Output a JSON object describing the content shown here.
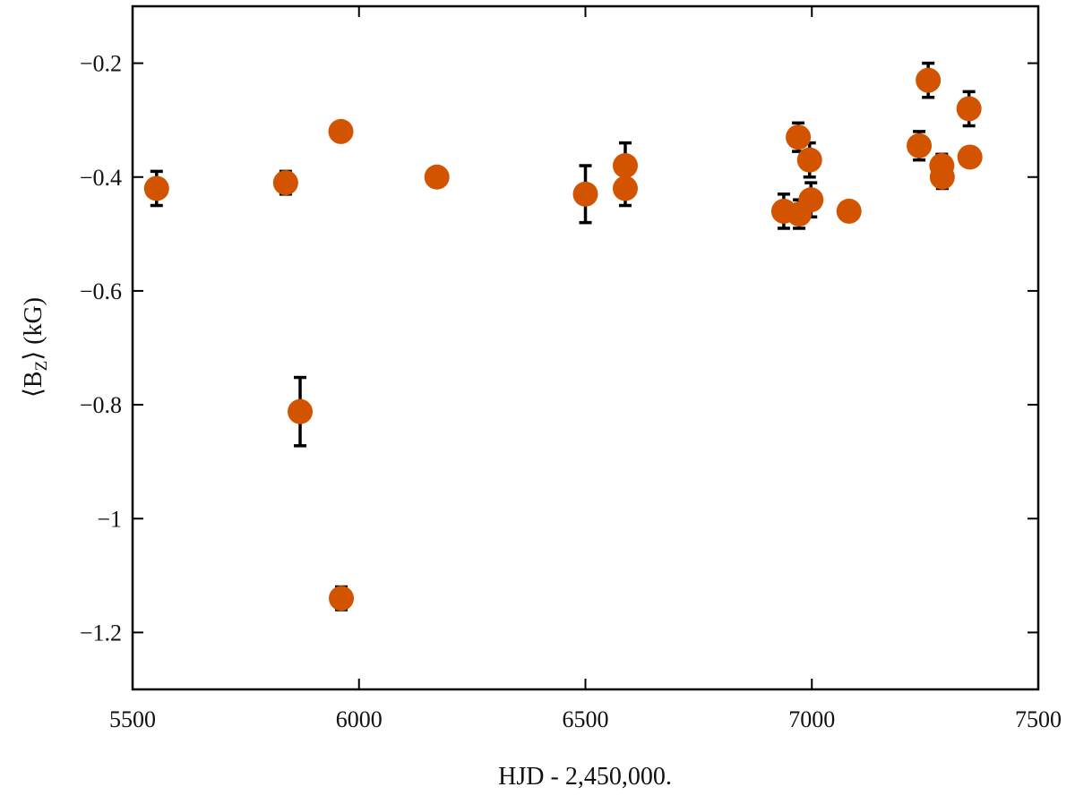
{
  "chart_data": {
    "type": "scatter",
    "xlabel": "HJD - 2,450,000.",
    "ylabel_main": "⟨B",
    "ylabel_sub": "Z",
    "ylabel_rest": "⟩ (kG)",
    "xlim": [
      5500,
      7500
    ],
    "ylim": [
      -1.3,
      -0.1
    ],
    "x_ticks": [
      5500,
      6000,
      6500,
      7000,
      7500
    ],
    "x_tick_labels": [
      "5500",
      "6000",
      "6500",
      "7000",
      "7500"
    ],
    "y_ticks": [
      -0.2,
      -0.4,
      -0.6,
      -0.8,
      -1.0,
      -1.2
    ],
    "y_tick_labels": [
      "−0.2",
      "−0.4",
      "−0.6",
      "−0.8",
      "−1",
      "−1.2"
    ],
    "grid": false,
    "marker_color": "#d35400",
    "errorbar_color": "#000000",
    "points": [
      {
        "x": 5553,
        "y": -0.42,
        "err": 0.03
      },
      {
        "x": 5838,
        "y": -0.41,
        "err": 0.02
      },
      {
        "x": 5870,
        "y": -0.812,
        "err": 0.06
      },
      {
        "x": 5960,
        "y": -0.32,
        "err": 0.0
      },
      {
        "x": 5961,
        "y": -1.14,
        "err": 0.02
      },
      {
        "x": 6172,
        "y": -0.4,
        "err": 0.0
      },
      {
        "x": 6500,
        "y": -0.43,
        "err": 0.05
      },
      {
        "x": 6588,
        "y": -0.38,
        "err": 0.04
      },
      {
        "x": 6588,
        "y": -0.42,
        "err": 0.03
      },
      {
        "x": 6938,
        "y": -0.46,
        "err": 0.03
      },
      {
        "x": 6970,
        "y": -0.33,
        "err": 0.025
      },
      {
        "x": 6972,
        "y": -0.465,
        "err": 0.025
      },
      {
        "x": 6995,
        "y": -0.37,
        "err": 0.03
      },
      {
        "x": 6998,
        "y": -0.44,
        "err": 0.03
      },
      {
        "x": 7082,
        "y": -0.46,
        "err": 0.0
      },
      {
        "x": 7237,
        "y": -0.345,
        "err": 0.025
      },
      {
        "x": 7257,
        "y": -0.23,
        "err": 0.03
      },
      {
        "x": 7287,
        "y": -0.38,
        "err": 0.02
      },
      {
        "x": 7288,
        "y": -0.4,
        "err": 0.02
      },
      {
        "x": 7347,
        "y": -0.28,
        "err": 0.03
      },
      {
        "x": 7349,
        "y": -0.365,
        "err": 0.0
      }
    ]
  }
}
